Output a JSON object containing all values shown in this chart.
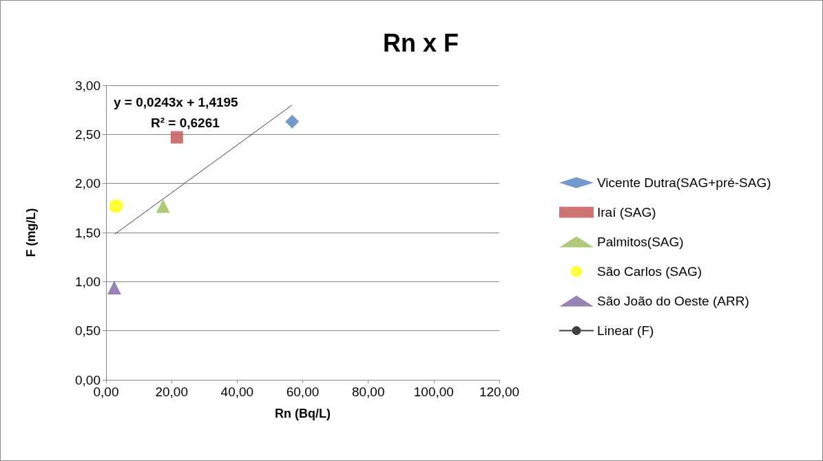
{
  "chart_data": {
    "type": "scatter",
    "title": "Rn x F",
    "xlabel": "Rn (Bq/L)",
    "ylabel": "F (mg/L)",
    "annotations": [
      "y = 0,0243x + 1,4195",
      "R² = 0,6261"
    ],
    "series": [
      {
        "name": "Vicente Dutra(SAG+pré-SAG)",
        "color": "#4f81bd",
        "marker": "diamond",
        "x": [
          56.8
        ],
        "values": [
          2.63
        ]
      },
      {
        "name": "Iraí (SAG)",
        "color": "#c0504d",
        "marker": "square",
        "x": [
          21.6
        ],
        "values": [
          2.47
        ]
      },
      {
        "name": "Palmitos(SAG)",
        "color": "#9bbb59",
        "marker": "triangle",
        "x": [
          17.4
        ],
        "values": [
          1.77
        ]
      },
      {
        "name": "São Carlos (SAG)",
        "color": "#ffff00",
        "marker": "circle",
        "x": [
          3.1
        ],
        "values": [
          1.77
        ]
      },
      {
        "name": "São João do Oeste (ARR)",
        "color": "#8064a2",
        "marker": "triangle",
        "x": [
          2.5
        ],
        "values": [
          0.94
        ]
      },
      {
        "name": "Linear (F)",
        "type": "line",
        "color": "#404040",
        "marker": "none",
        "x": [
          2.7,
          56.8
        ],
        "values": [
          1.485,
          2.8
        ]
      }
    ],
    "xlim": [
      0,
      120
    ],
    "xticks": [
      {
        "value": 0,
        "label": "0,00"
      },
      {
        "value": 20,
        "label": "20,00"
      },
      {
        "value": 40,
        "label": "40,00"
      },
      {
        "value": 60,
        "label": "60,00"
      },
      {
        "value": 80,
        "label": "80,00"
      },
      {
        "value": 100,
        "label": "100,00"
      },
      {
        "value": 120,
        "label": "120,00"
      }
    ],
    "ylim": [
      0,
      3
    ],
    "yticks": [
      {
        "value": 0,
        "label": "0,00"
      },
      {
        "value": 0.5,
        "label": "0,50"
      },
      {
        "value": 1,
        "label": "1,00"
      },
      {
        "value": 1.5,
        "label": "1,50"
      },
      {
        "value": 2,
        "label": "2,00"
      },
      {
        "value": 2.5,
        "label": "2,50"
      },
      {
        "value": 3,
        "label": "3,00"
      }
    ],
    "grid": "y",
    "legend": "right"
  }
}
